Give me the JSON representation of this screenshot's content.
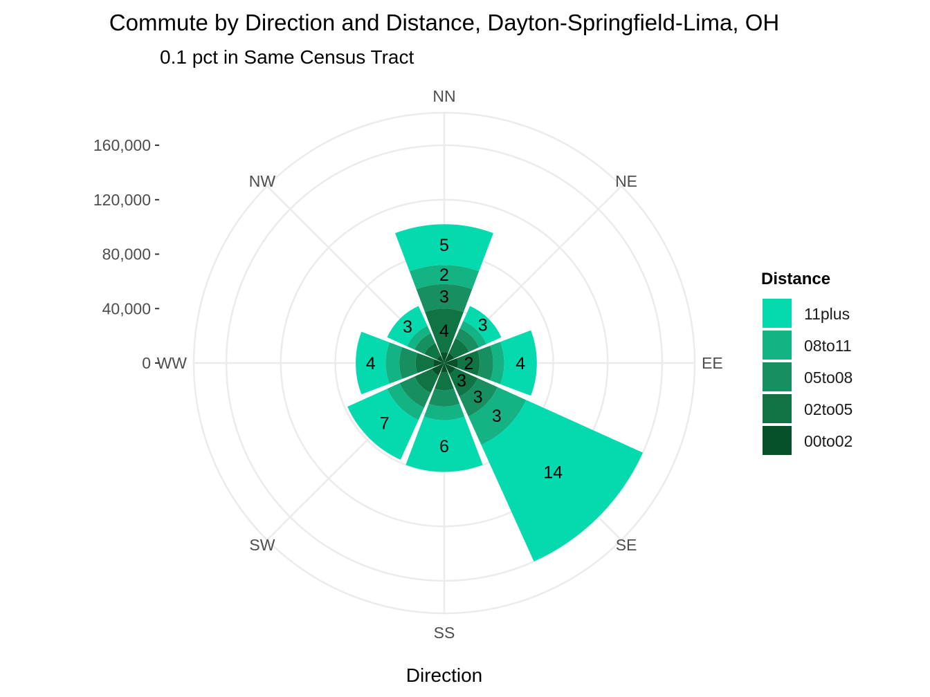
{
  "chart_data": {
    "type": "bar",
    "coord": "polar",
    "stacked": true,
    "title": "Commute by Direction and Distance, Dayton-Springfield-Lima, OH",
    "subtitle": "0.1 pct in Same Census Tract",
    "xlabel": "Direction",
    "ylabel": "",
    "ylim": [
      0,
      160000
    ],
    "y_ticks": [
      0,
      40000,
      80000,
      120000,
      160000
    ],
    "y_tick_labels": [
      "0",
      "40,000",
      "80,000",
      "120,000",
      "160,000"
    ],
    "categories": [
      "NN",
      "NE",
      "EE",
      "SE",
      "SS",
      "SW",
      "WW",
      "NW"
    ],
    "legend_title": "Distance",
    "legend_position": "right",
    "grid": true,
    "series": [
      {
        "name": "00to02",
        "color": "#06512A",
        "values": [
          8000,
          8000,
          10000,
          9000,
          7000,
          10000,
          8000,
          6000
        ],
        "labels": [
          "",
          "",
          "",
          "",
          "",
          "",
          "",
          ""
        ]
      },
      {
        "name": "02to05",
        "color": "#107343",
        "values": [
          32000,
          12000,
          16000,
          18000,
          13000,
          14000,
          13000,
          10000
        ],
        "labels": [
          "4",
          "",
          "2",
          "3",
          "",
          "",
          "",
          ""
        ]
      },
      {
        "name": "05to08",
        "color": "#178F61",
        "values": [
          18000,
          8000,
          10000,
          16000,
          12000,
          12000,
          12000,
          8000
        ],
        "labels": [
          "3",
          "",
          "",
          "3",
          "",
          "",
          "",
          ""
        ]
      },
      {
        "name": "08to11",
        "color": "#14B383",
        "values": [
          14000,
          6000,
          8000,
          23000,
          10000,
          10000,
          10000,
          6000
        ],
        "labels": [
          "2",
          "",
          "",
          "3",
          "",
          "",
          "",
          ""
        ]
      },
      {
        "name": "11plus",
        "color": "#05D9AE",
        "values": [
          30000,
          12000,
          24000,
          94000,
          38000,
          32000,
          22000,
          16000
        ],
        "labels": [
          "5",
          "3",
          "4",
          "14",
          "6",
          "7",
          "4",
          "3"
        ]
      }
    ]
  }
}
